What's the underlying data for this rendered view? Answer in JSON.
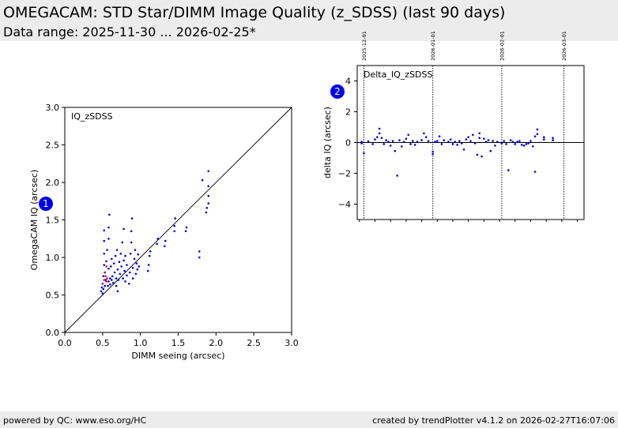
{
  "header": {
    "title": "OMEGACAM: STD Star/DIMM Image Quality (z_SDSS) (last 90 days)",
    "subtitle": "Data range: 2025-11-30 ... 2026-02-25*"
  },
  "footer": {
    "left": "powered by QC: www.eso.org/HC",
    "right": "created by trendPlotter v4.1.2 on 2026-02-27T16:07:06"
  },
  "colors": {
    "points": "#0000dd",
    "highlight": "#cc0033",
    "badge": "#0000ee"
  },
  "chart_data": [
    {
      "type": "scatter",
      "badge": "1",
      "label": "IQ_zSDSS",
      "xlabel": "DIMM seeing (arcsec)",
      "ylabel": "OmegaCAM IQ (arcsec)",
      "xlim": [
        0,
        3
      ],
      "ylim": [
        0,
        3
      ],
      "x_ticks": [
        "0.0",
        "0.5",
        "1.0",
        "1.5",
        "2.0",
        "2.5",
        "3.0"
      ],
      "y_ticks": [
        "0.0",
        "0.5",
        "1.0",
        "1.5",
        "2.0",
        "2.5",
        "3.0"
      ],
      "reference_line": "y = x",
      "series": [
        {
          "color": "blue",
          "points": [
            [
              0.48,
              0.55
            ],
            [
              0.49,
              0.6
            ],
            [
              0.5,
              0.52
            ],
            [
              0.5,
              0.65
            ],
            [
              0.51,
              0.58
            ],
            [
              0.51,
              0.75
            ],
            [
              0.52,
              0.9
            ],
            [
              0.52,
              1.05
            ],
            [
              0.52,
              1.22
            ],
            [
              0.52,
              1.36
            ],
            [
              0.53,
              0.62
            ],
            [
              0.53,
              0.8
            ],
            [
              0.54,
              0.7
            ],
            [
              0.55,
              0.95
            ],
            [
              0.56,
              1.1
            ],
            [
              0.57,
              0.62
            ],
            [
              0.58,
              0.68
            ],
            [
              0.58,
              0.85
            ],
            [
              0.58,
              1.25
            ],
            [
              0.58,
              1.4
            ],
            [
              0.59,
              1.57
            ],
            [
              0.6,
              0.72
            ],
            [
              0.6,
              0.64
            ],
            [
              0.61,
              0.88
            ],
            [
              0.62,
              0.98
            ],
            [
              0.62,
              0.7
            ],
            [
              0.63,
              0.75
            ],
            [
              0.64,
              0.66
            ],
            [
              0.65,
              0.92
            ],
            [
              0.66,
              0.8
            ],
            [
              0.67,
              1.02
            ],
            [
              0.68,
              0.72
            ],
            [
              0.68,
              0.62
            ],
            [
              0.69,
              1.1
            ],
            [
              0.7,
              0.84
            ],
            [
              0.7,
              0.55
            ],
            [
              0.71,
              0.7
            ],
            [
              0.72,
              0.94
            ],
            [
              0.73,
              0.78
            ],
            [
              0.74,
              1.05
            ],
            [
              0.75,
              0.88
            ],
            [
              0.76,
              1.2
            ],
            [
              0.77,
              0.72
            ],
            [
              0.78,
              1.38
            ],
            [
              0.78,
              0.96
            ],
            [
              0.79,
              0.82
            ],
            [
              0.8,
              0.68
            ],
            [
              0.8,
              1.02
            ],
            [
              0.82,
              0.76
            ],
            [
              0.82,
              0.9
            ],
            [
              0.85,
              0.65
            ],
            [
              0.86,
              0.8
            ],
            [
              0.87,
              1.05
            ],
            [
              0.88,
              1.2
            ],
            [
              0.88,
              1.35
            ],
            [
              0.89,
              1.52
            ],
            [
              0.9,
              0.72
            ],
            [
              0.9,
              0.86
            ],
            [
              0.92,
              0.98
            ],
            [
              0.93,
              1.1
            ],
            [
              0.94,
              0.78
            ],
            [
              0.95,
              0.92
            ],
            [
              0.96,
              0.84
            ],
            [
              0.97,
              1.04
            ],
            [
              0.98,
              0.88
            ],
            [
              1.1,
              0.82
            ],
            [
              1.11,
              0.9
            ],
            [
              1.12,
              1.02
            ],
            [
              1.13,
              1.08
            ],
            [
              1.22,
              1.18
            ],
            [
              1.23,
              1.25
            ],
            [
              1.32,
              1.15
            ],
            [
              1.33,
              1.22
            ],
            [
              1.45,
              1.35
            ],
            [
              1.45,
              1.42
            ],
            [
              1.46,
              1.52
            ],
            [
              1.6,
              1.35
            ],
            [
              1.61,
              1.4
            ],
            [
              1.78,
              1.0
            ],
            [
              1.78,
              1.08
            ],
            [
              1.82,
              2.03
            ],
            [
              1.87,
              1.6
            ],
            [
              1.88,
              1.66
            ],
            [
              1.9,
              1.72
            ],
            [
              1.9,
              1.82
            ],
            [
              1.9,
              1.95
            ],
            [
              1.9,
              2.15
            ]
          ]
        },
        {
          "color": "red",
          "points": [
            [
              0.5,
              0.65
            ],
            [
              0.52,
              0.7
            ],
            [
              0.53,
              0.8
            ],
            [
              0.54,
              0.75
            ],
            [
              0.55,
              0.68
            ],
            [
              0.55,
              0.88
            ],
            [
              0.56,
              0.72
            ]
          ]
        }
      ]
    },
    {
      "type": "scatter",
      "badge": "2",
      "label": "Delta_IQ_zSDSS",
      "xlabel": "",
      "ylabel": "delta IQ (arcsec)",
      "ylim": [
        -5,
        5
      ],
      "y_ticks": [
        "4",
        "2",
        "0",
        "−2",
        "−4"
      ],
      "x_range_dates": [
        "2025-11-28",
        "2026-03-10"
      ],
      "date_markers": [
        "2025-12-01",
        "2026-01-01",
        "2026-02-01",
        "2026-03-01"
      ],
      "reference_line": "y = 0",
      "points": [
        [
          "2025-11-30",
          -0.05
        ],
        [
          "2025-11-30",
          0.05
        ],
        [
          "2025-12-01",
          -0.7
        ],
        [
          "2025-12-03",
          0.08
        ],
        [
          "2025-12-05",
          -0.1
        ],
        [
          "2025-12-06",
          0.2
        ],
        [
          "2025-12-07",
          0.35
        ],
        [
          "2025-12-08",
          0.9
        ],
        [
          "2025-12-08",
          0.6
        ],
        [
          "2025-12-09",
          0.3
        ],
        [
          "2025-12-10",
          -0.1
        ],
        [
          "2025-12-11",
          0.15
        ],
        [
          "2025-12-12",
          0.05
        ],
        [
          "2025-12-13",
          -0.2
        ],
        [
          "2025-12-14",
          0.1
        ],
        [
          "2025-12-15",
          -0.55
        ],
        [
          "2025-12-16",
          -2.15
        ],
        [
          "2025-12-17",
          0.15
        ],
        [
          "2025-12-18",
          -0.25
        ],
        [
          "2025-12-19",
          0.05
        ],
        [
          "2025-12-20",
          0.25
        ],
        [
          "2025-12-21",
          0.5
        ],
        [
          "2025-12-22",
          -0.1
        ],
        [
          "2025-12-23",
          0.1
        ],
        [
          "2025-12-24",
          -0.15
        ],
        [
          "2025-12-25",
          0.05
        ],
        [
          "2025-12-27",
          0.15
        ],
        [
          "2025-12-28",
          0.6
        ],
        [
          "2025-12-29",
          0.35
        ],
        [
          "2025-12-30",
          0.1
        ],
        [
          "2026-01-01",
          -0.6
        ],
        [
          "2026-01-01",
          -0.75
        ],
        [
          "2026-01-02",
          0.05
        ],
        [
          "2026-01-03",
          0.1
        ],
        [
          "2026-01-04",
          0.4
        ],
        [
          "2026-01-05",
          -0.1
        ],
        [
          "2026-01-06",
          0.15
        ],
        [
          "2026-01-08",
          0.05
        ],
        [
          "2026-01-09",
          0.2
        ],
        [
          "2026-01-10",
          -0.1
        ],
        [
          "2026-01-11",
          0.05
        ],
        [
          "2026-01-12",
          -0.15
        ],
        [
          "2026-01-13",
          0.1
        ],
        [
          "2026-01-14",
          -0.05
        ],
        [
          "2026-01-15",
          -0.45
        ],
        [
          "2026-01-16",
          0.2
        ],
        [
          "2026-01-17",
          0.35
        ],
        [
          "2026-01-18",
          0.1
        ],
        [
          "2026-01-19",
          0.5
        ],
        [
          "2026-01-20",
          -0.05
        ],
        [
          "2026-01-21",
          -0.8
        ],
        [
          "2026-01-22",
          0.6
        ],
        [
          "2026-01-22",
          0.3
        ],
        [
          "2026-01-23",
          -0.9
        ],
        [
          "2026-01-24",
          0.25
        ],
        [
          "2026-01-25",
          0.05
        ],
        [
          "2026-01-26",
          0.15
        ],
        [
          "2026-01-27",
          -0.55
        ],
        [
          "2026-01-28",
          0.1
        ],
        [
          "2026-01-29",
          -0.2
        ],
        [
          "2026-01-30",
          0.05
        ],
        [
          "2026-02-01",
          -0.05
        ],
        [
          "2026-02-02",
          0.1
        ],
        [
          "2026-02-03",
          -0.1
        ],
        [
          "2026-02-04",
          -1.8
        ],
        [
          "2026-02-05",
          0.15
        ],
        [
          "2026-02-06",
          0.05
        ],
        [
          "2026-02-07",
          -0.1
        ],
        [
          "2026-02-08",
          0.05
        ],
        [
          "2026-02-09",
          0.1
        ],
        [
          "2026-02-10",
          -0.15
        ],
        [
          "2026-02-11",
          -0.2
        ],
        [
          "2026-02-12",
          -0.1
        ],
        [
          "2026-02-13",
          -0.05
        ],
        [
          "2026-02-14",
          0.1
        ],
        [
          "2026-02-15",
          -0.25
        ],
        [
          "2026-02-16",
          -1.9
        ],
        [
          "2026-02-16",
          0.4
        ],
        [
          "2026-02-17",
          0.85
        ],
        [
          "2026-02-17",
          0.55
        ],
        [
          "2026-02-20",
          0.2
        ],
        [
          "2026-02-20",
          0.35
        ],
        [
          "2026-02-24",
          0.3
        ],
        [
          "2026-02-24",
          0.15
        ]
      ]
    }
  ]
}
